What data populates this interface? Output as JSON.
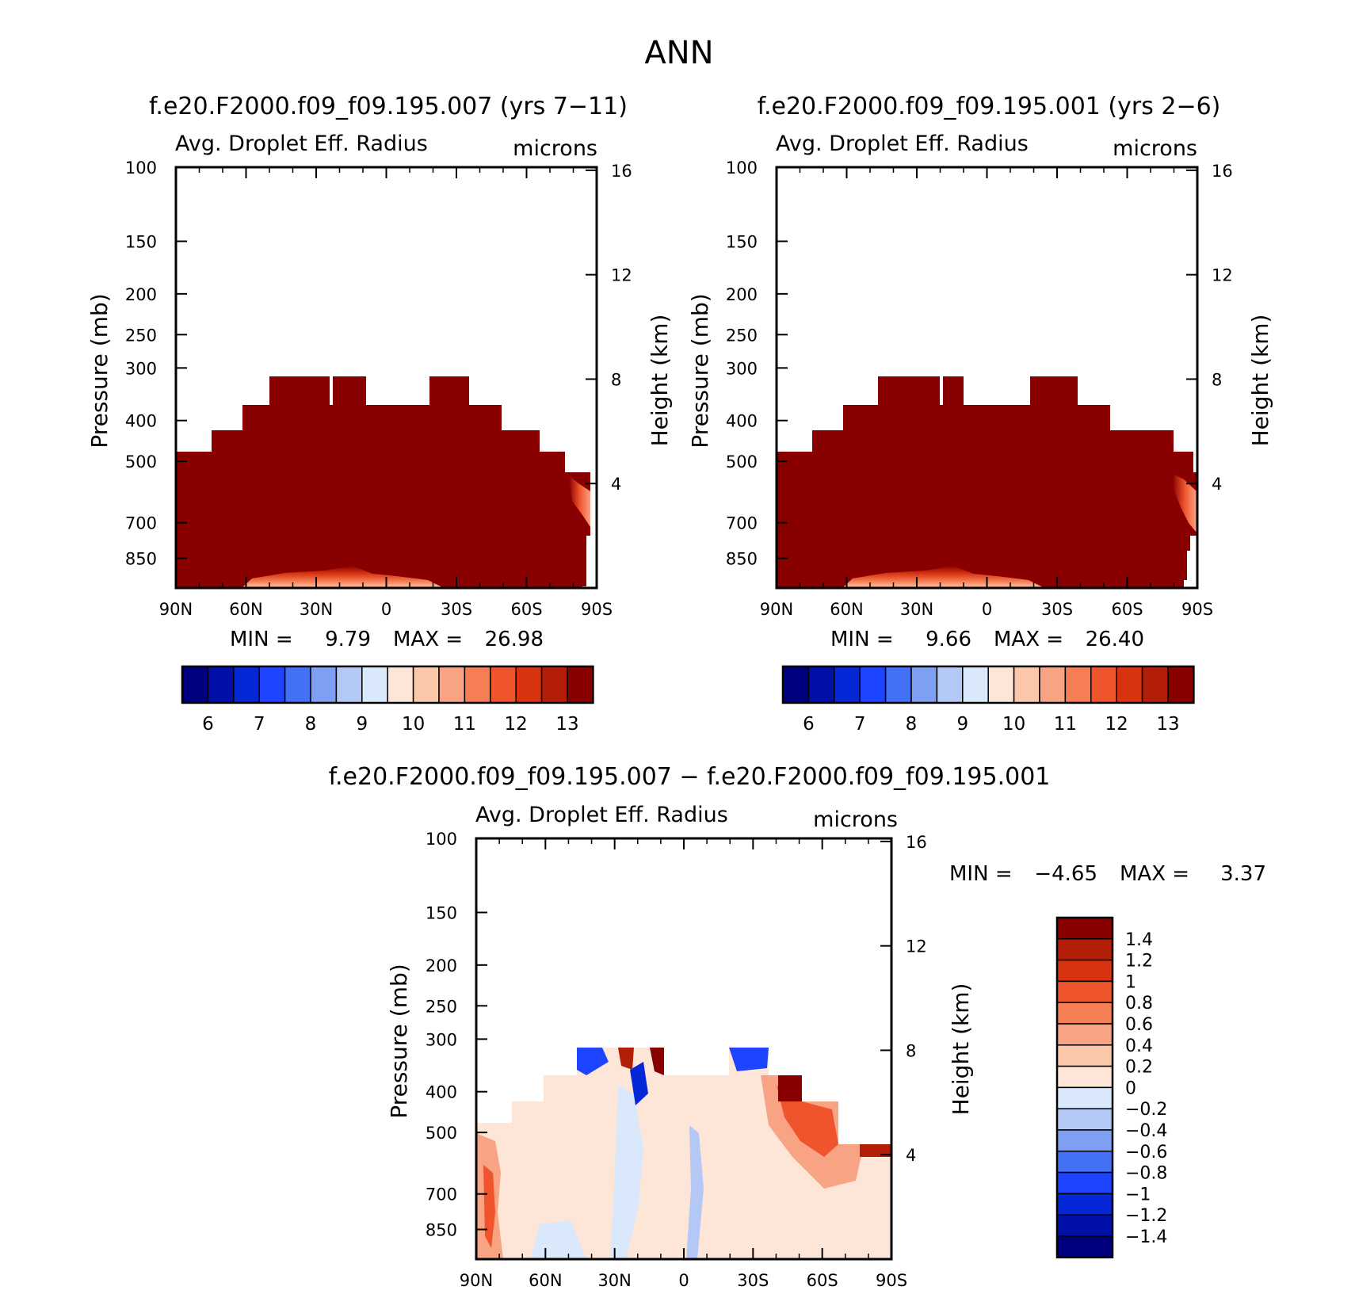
{
  "main_title": "ANN",
  "colors": {
    "neg": [
      "#00007f",
      "#0010a8",
      "#0627d6",
      "#1d45ff",
      "#4470f5",
      "#7f9ff2",
      "#b4c8f6",
      "#d9e8fb"
    ],
    "pos": [
      "#fde6d7",
      "#fbc7ab",
      "#f8a383",
      "#f67e55",
      "#f0542c",
      "#d83311",
      "#b31e08",
      "#890000"
    ]
  },
  "chart_data": [
    {
      "id": "left",
      "type": "heatmap",
      "title": "f.e20.F2000.f09_f09.195.007 (yrs 7−11)",
      "variable": "Avg. Droplet Eff. Radius",
      "units": "microns",
      "ylabel": "Pressure (mb)",
      "y2label": "Height (km)",
      "x_ticks": [
        "90N",
        "60N",
        "30N",
        "0",
        "30S",
        "60S",
        "90S"
      ],
      "x_range": [
        90,
        -90
      ],
      "y_ticks": [
        100,
        150,
        200,
        250,
        300,
        400,
        500,
        700,
        850
      ],
      "y_range": [
        100,
        1000
      ],
      "y_scale": "log",
      "y2_ticks": [
        4,
        8,
        12,
        16
      ],
      "min_label": "MIN =",
      "min": "9.79",
      "max_label": "MAX =",
      "max": "26.98",
      "colorbar_levels": [
        "6",
        "7",
        "8",
        "9",
        "10",
        "11",
        "12",
        "13"
      ],
      "top_boundary": [
        {
          "lat_from": 90,
          "lat_to": 75,
          "p": 450
        },
        {
          "lat_from": 75,
          "lat_to": 60,
          "p": 400
        },
        {
          "lat_from": 60,
          "lat_to": 50,
          "p": 350
        },
        {
          "lat_from": 50,
          "lat_to": 25,
          "p": 300
        },
        {
          "lat_from": 25,
          "lat_to": 22,
          "p": 350
        },
        {
          "lat_from": 22,
          "lat_to": 9,
          "p": 300
        },
        {
          "lat_from": 9,
          "lat_to": -18,
          "p": 350
        },
        {
          "lat_from": -18,
          "lat_to": -35,
          "p": 300
        },
        {
          "lat_from": -35,
          "lat_to": -49,
          "p": 350
        },
        {
          "lat_from": -49,
          "lat_to": -65,
          "p": 400
        },
        {
          "lat_from": -65,
          "lat_to": -76,
          "p": 450
        },
        {
          "lat_from": -76,
          "lat_to": -84,
          "p": 500
        }
      ]
    },
    {
      "id": "right",
      "type": "heatmap",
      "title": "f.e20.F2000.f09_f09.195.001 (yrs 2−6)",
      "variable": "Avg. Droplet Eff. Radius",
      "units": "microns",
      "ylabel": "Pressure (mb)",
      "y2label": "Height (km)",
      "x_ticks": [
        "90N",
        "60N",
        "30N",
        "0",
        "30S",
        "60S",
        "90S"
      ],
      "x_range": [
        90,
        -90
      ],
      "y_ticks": [
        100,
        150,
        200,
        250,
        300,
        400,
        500,
        700,
        850
      ],
      "y_range": [
        100,
        1000
      ],
      "y_scale": "log",
      "y2_ticks": [
        4,
        8,
        12,
        16
      ],
      "min_label": "MIN =",
      "min": "9.66",
      "max_label": "MAX =",
      "max": "26.40",
      "colorbar_levels": [
        "6",
        "7",
        "8",
        "9",
        "10",
        "11",
        "12",
        "13"
      ]
    },
    {
      "id": "diff",
      "type": "heatmap",
      "title": "f.e20.F2000.f09_f09.195.007 − f.e20.F2000.f09_f09.195.001",
      "variable": "Avg. Droplet Eff. Radius",
      "units": "microns",
      "ylabel": "Pressure (mb)",
      "y2label": "Height (km)",
      "x_ticks": [
        "90N",
        "60N",
        "30N",
        "0",
        "30S",
        "60S",
        "90S"
      ],
      "x_range": [
        90,
        -90
      ],
      "y_ticks": [
        100,
        150,
        200,
        250,
        300,
        400,
        500,
        700,
        850
      ],
      "y_range": [
        100,
        1000
      ],
      "y_scale": "log",
      "y2_ticks": [
        4,
        8,
        12,
        16
      ],
      "min_label": "MIN =",
      "min": "−4.65",
      "max_label": "MAX =",
      "max": "3.37",
      "colorbar_levels": [
        "1.4",
        "1.2",
        "1",
        "0.8",
        "0.6",
        "0.4",
        "0.2",
        "0",
        "−0.2",
        "−0.4",
        "−0.6",
        "−0.8",
        "−1",
        "−1.2",
        "−1.4"
      ]
    }
  ]
}
